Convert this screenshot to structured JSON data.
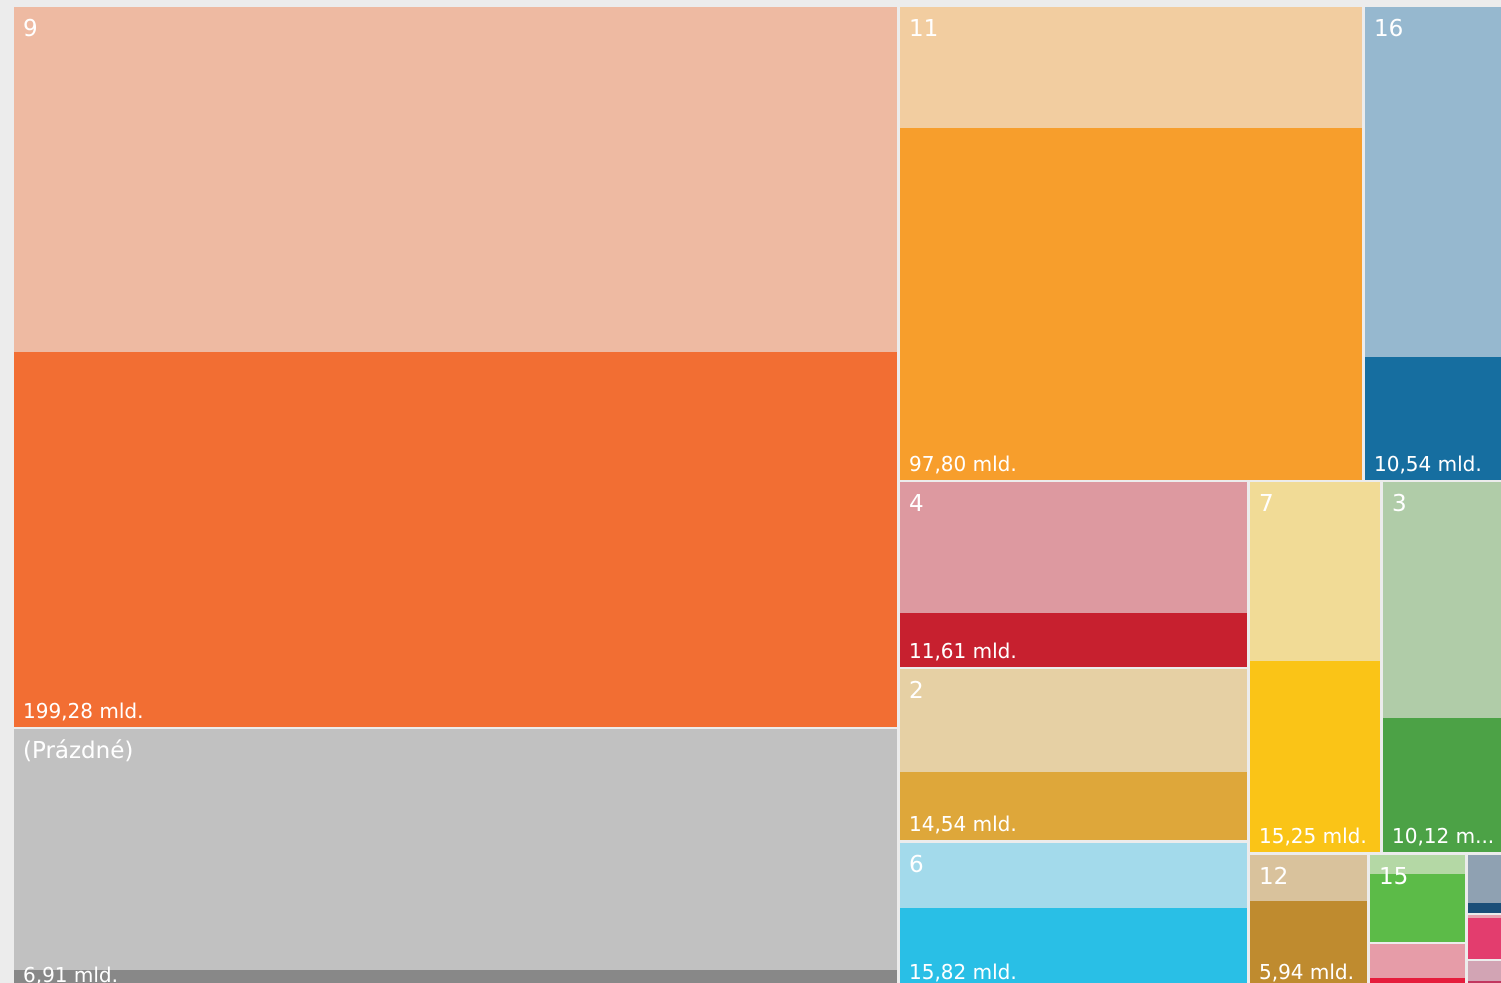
{
  "chart_data": {
    "type": "treemap",
    "title": "",
    "value_unit": "mld.",
    "nodes": [
      {
        "name": "9",
        "value_label": "199,28 mld.",
        "light_color": "#EEBAA2",
        "dark_color": "#F26E33"
      },
      {
        "name": "(Prázdné)",
        "value_label": "6,91 mld.",
        "light_color": "#C1C1C1",
        "dark_color": "#888888"
      },
      {
        "name": "11",
        "value_label": "97,80 mld.",
        "light_color": "#F2CDA0",
        "dark_color": "#F79E2C"
      },
      {
        "name": "16",
        "value_label": "10,54 mld.",
        "light_color": "#96B8CF",
        "dark_color": "#166EA0"
      },
      {
        "name": "4",
        "value_label": "11,61 mld.",
        "light_color": "#DD99A0",
        "dark_color": "#C7202F"
      },
      {
        "name": "2",
        "value_label": "14,54 mld.",
        "light_color": "#E6D0A4",
        "dark_color": "#DEA73A"
      },
      {
        "name": "6",
        "value_label": "15,82 mld.",
        "light_color": "#A3DAEB",
        "dark_color": "#29BFE6"
      },
      {
        "name": "7",
        "value_label": "15,25 mld.",
        "light_color": "#F1DB96",
        "dark_color": "#FAC417"
      },
      {
        "name": "3",
        "value_label": "10,12 m...",
        "light_color": "#B0CCA8",
        "dark_color": "#4CA246"
      },
      {
        "name": "12",
        "value_label": "5,94 mld.",
        "light_color": "#D9C29C",
        "dark_color": "#BF8B2F"
      },
      {
        "name": "15",
        "value_label": "",
        "light_color": "#B4D8A5",
        "dark_color": "#5CBB48"
      },
      {
        "name": "",
        "value_label": "",
        "light_color": "#8FA1B2",
        "dark_color": "#1B4E78"
      },
      {
        "name": "",
        "value_label": "",
        "light_color": "#E8A2B0",
        "dark_color": "#E33D6E"
      },
      {
        "name": "",
        "value_label": "",
        "light_color": "#E69CA8",
        "dark_color": "#E61C3C"
      },
      {
        "name": "",
        "value_label": "",
        "light_color": "#D2A4B4",
        "dark_color": "#C2375F"
      }
    ]
  }
}
